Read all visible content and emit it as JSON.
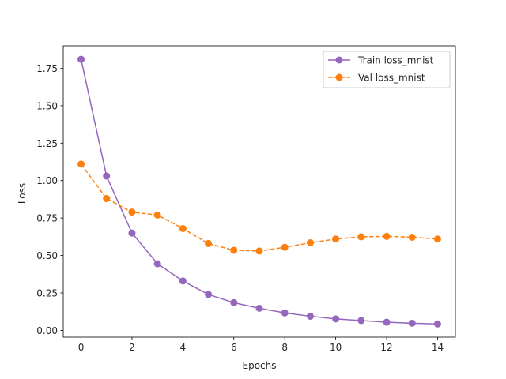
{
  "chart_data": {
    "type": "line",
    "title": "",
    "xlabel": "Epochs",
    "ylabel": "Loss",
    "xlim": [
      -0.7,
      14.7
    ],
    "ylim": [
      -0.045,
      1.9
    ],
    "xticks": [
      0,
      2,
      4,
      6,
      8,
      10,
      12,
      14
    ],
    "xtick_labels": [
      "0",
      "2",
      "4",
      "6",
      "8",
      "10",
      "12",
      "14"
    ],
    "yticks": [
      0.0,
      0.25,
      0.5,
      0.75,
      1.0,
      1.25,
      1.5,
      1.75
    ],
    "ytick_labels": [
      "0.00",
      "0.25",
      "0.50",
      "0.75",
      "1.00",
      "1.25",
      "1.50",
      "1.75"
    ],
    "grid": false,
    "legend_position": "top-right",
    "x": [
      0,
      1,
      2,
      3,
      4,
      5,
      6,
      7,
      8,
      9,
      10,
      11,
      12,
      13,
      14
    ],
    "series": [
      {
        "name": "Train loss_mnist",
        "color": "#9467bd",
        "line_style": "solid",
        "marker": "circle",
        "values": [
          1.81,
          1.03,
          0.65,
          0.445,
          0.33,
          0.24,
          0.185,
          0.148,
          0.117,
          0.095,
          0.077,
          0.066,
          0.055,
          0.048,
          0.043
        ]
      },
      {
        "name": "Val loss_mnist",
        "color": "#ff7f0e",
        "line_style": "dashed",
        "marker": "circle",
        "values": [
          1.11,
          0.88,
          0.79,
          0.77,
          0.68,
          0.58,
          0.535,
          0.53,
          0.555,
          0.585,
          0.61,
          0.625,
          0.628,
          0.622,
          0.61
        ]
      }
    ]
  }
}
